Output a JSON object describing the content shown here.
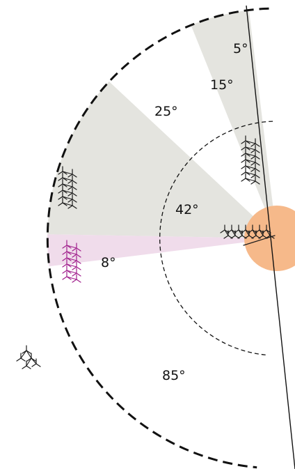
{
  "diagram": {
    "angle_labels": {
      "a5": "5°",
      "a15": "15°",
      "a25": "25°",
      "a42": "42°",
      "a8": "8°",
      "a85": "85°"
    },
    "colors": {
      "gray_wedge": "#e4e4df",
      "pink_wedge": "#f0dceb",
      "origin_fill": "#f6b98a",
      "outline": "#111111",
      "molecule_black": "#1a1a1a",
      "molecule_magenta": "#a01e8c"
    },
    "icons": {
      "molecule_upper_right": "branched-hydrocarbon-stack-icon",
      "molecule_left": "branched-hydrocarbon-stack-icon",
      "molecule_magenta": "magenta-hydrocarbon-stack-icon",
      "molecule_center": "horizontal-hydrocarbon-cluster-icon",
      "molecule_isolated": "isolated-molecule-icon"
    }
  }
}
